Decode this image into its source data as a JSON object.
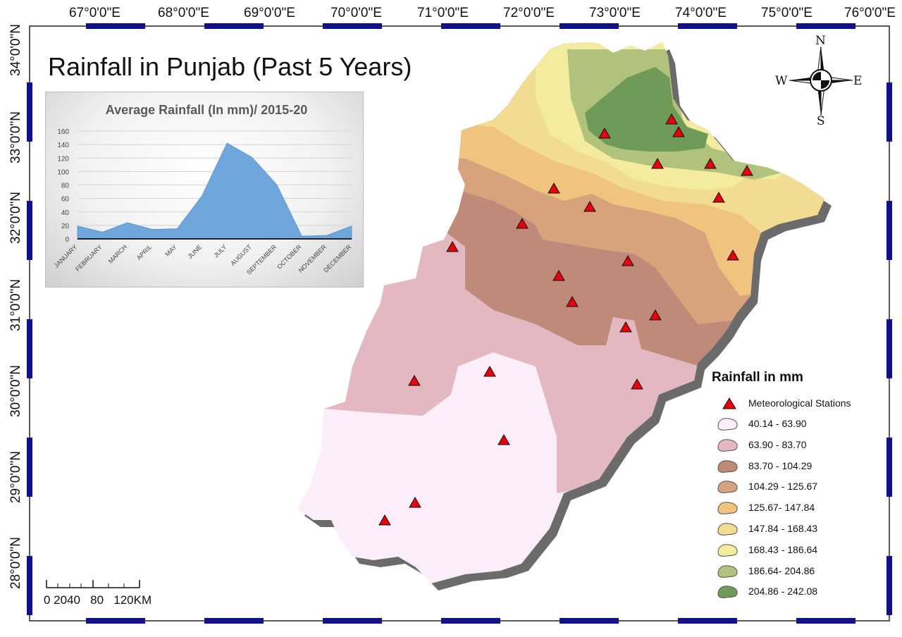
{
  "title": "Rainfall in Punjab (Past 5 Years)",
  "longitude_labels": [
    "67°0'0\"E",
    "68°0'0\"E",
    "69°0'0\"E",
    "70°0'0\"E",
    "71°0'0\"E",
    "72°0'0\"E",
    "73°0'0\"E",
    "74°0'0\"E",
    "75°0'0\"E",
    "76°0'0\"E"
  ],
  "latitude_labels": [
    "34°0'0\"N",
    "33°0'0\"N",
    "32°0'0\"N",
    "31°0'0\"N",
    "30°0'0\"N",
    "29°0'0\"N",
    "28°0'0\"N"
  ],
  "compass": {
    "n": "N",
    "s": "S",
    "e": "E",
    "w": "W"
  },
  "legend": {
    "title": "Rainfall in mm",
    "stations_label": "Meteorological Stations",
    "station_color": "#e8000b",
    "classes": [
      {
        "label": "40.14 - 63.90",
        "color": "#fbeefa"
      },
      {
        "label": "63.90 - 83.70",
        "color": "#e3b8c0"
      },
      {
        "label": "83.70 - 104.29",
        "color": "#c08a7b"
      },
      {
        "label": "104.29 - 125.67",
        "color": "#d6a37c"
      },
      {
        "label": "125.67- 147.84",
        "color": "#efc47e"
      },
      {
        "label": "147.84 - 168.43",
        "color": "#f2dc91"
      },
      {
        "label": "168.43 - 186.64",
        "color": "#f3ec9f"
      },
      {
        "label": "186.64- 204.86",
        "color": "#b0c27c"
      },
      {
        "label": "204.86 - 242.08",
        "color": "#6f9a57"
      }
    ]
  },
  "scale_bar": {
    "label": "0 2040   80   120KM"
  },
  "chart_data": {
    "type": "area",
    "title": "Average Rainfall (In mm)/ 2015-20",
    "categories": [
      "JANUARY",
      "FEBRUARY",
      "MARCH",
      "APRIL",
      "MAY",
      "JUNE",
      "JULY",
      "AUGUST",
      "SEPTEMBER",
      "OCTOBER",
      "NOVEMBER",
      "DECEMBER"
    ],
    "values": [
      19,
      10,
      24,
      14,
      15,
      64,
      142,
      121,
      80,
      4,
      5,
      19
    ],
    "yticks": [
      0,
      20,
      40,
      60,
      80,
      100,
      120,
      140,
      160
    ],
    "ylim": [
      0,
      160
    ],
    "color": "#6fa6dc"
  }
}
